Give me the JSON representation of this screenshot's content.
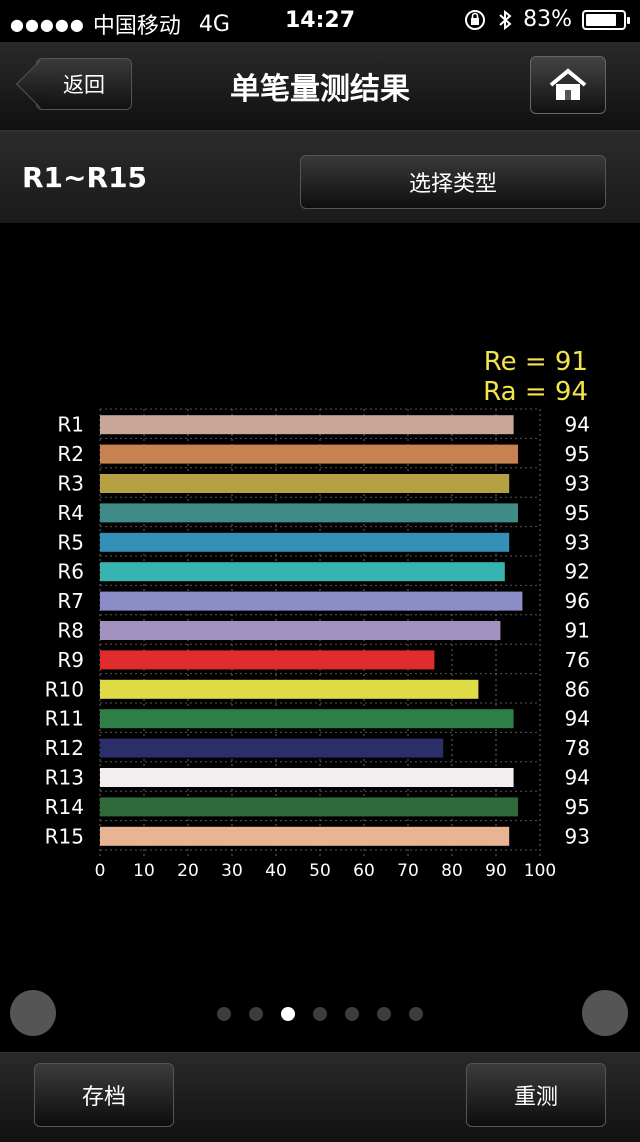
{
  "status_bar": {
    "carrier": "中国移动",
    "network": "4G",
    "time": "14:27",
    "battery_percent": "83%",
    "battery_level": 0.83
  },
  "nav": {
    "back_label": "返回",
    "title": "单笔量测结果"
  },
  "sub_header": {
    "range_label": "R1~R15",
    "select_type_label": "选择类型"
  },
  "summary": {
    "re": "Re = 91",
    "ra": "Ra = 94"
  },
  "chart_data": {
    "type": "bar",
    "orientation": "horizontal",
    "categories": [
      "R1",
      "R2",
      "R3",
      "R4",
      "R5",
      "R6",
      "R7",
      "R8",
      "R9",
      "R10",
      "R11",
      "R12",
      "R13",
      "R14",
      "R15"
    ],
    "values": [
      94,
      95,
      93,
      95,
      93,
      92,
      96,
      91,
      76,
      86,
      94,
      78,
      94,
      95,
      93
    ],
    "colors": [
      "#c8a698",
      "#c88150",
      "#b6a044",
      "#3e8b87",
      "#3590b8",
      "#37b4b0",
      "#8d8ec7",
      "#a292bf",
      "#e02c2c",
      "#e0dc48",
      "#2f7e47",
      "#2a2f6a",
      "#f3eff1",
      "#2f6a3b",
      "#e8b494"
    ],
    "xticks": [
      0,
      10,
      20,
      30,
      40,
      50,
      60,
      70,
      80,
      90,
      100
    ],
    "xlim": [
      0,
      100
    ],
    "grid": true
  },
  "pagination": {
    "total": 7,
    "active_index": 2
  },
  "bottom": {
    "save_label": "存档",
    "remeasure_label": "重测"
  }
}
